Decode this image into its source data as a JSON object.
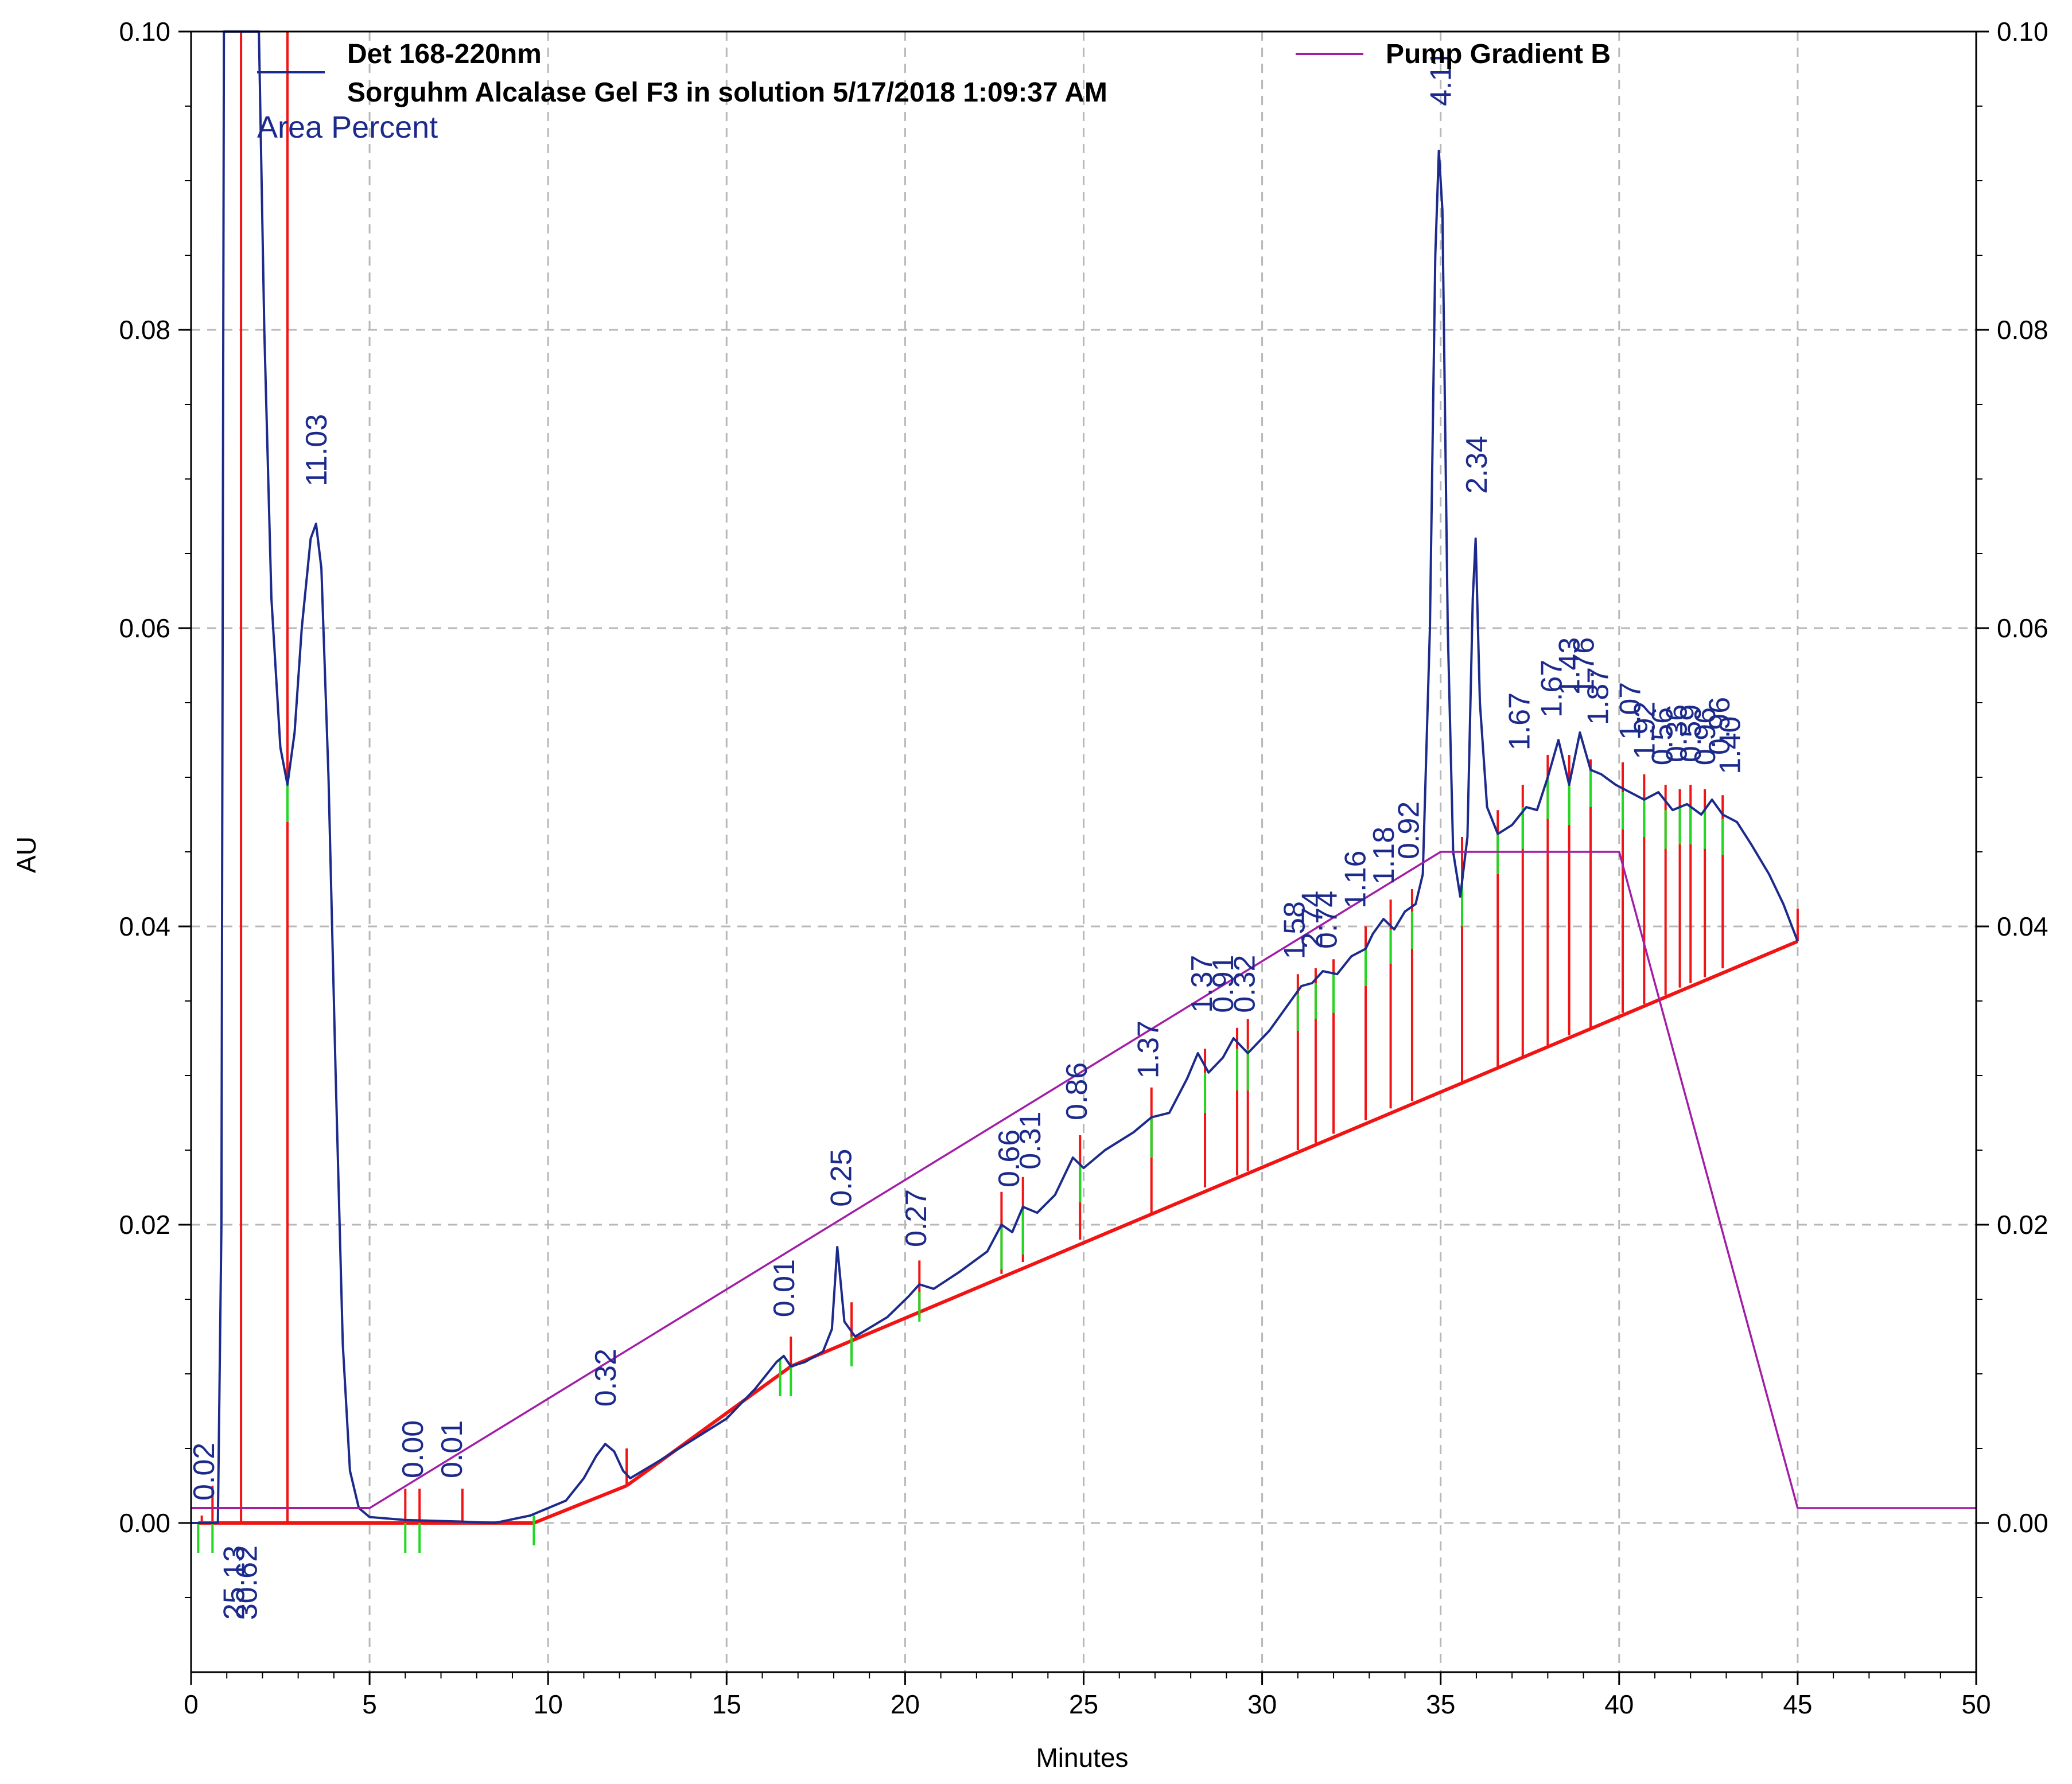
{
  "chart_data": {
    "type": "line",
    "legend": {
      "detector_label": "Det 168-220nm",
      "run_label": "Sorguhm Alcalase Gel F3 in solution 5/17/2018 1:09:37 AM",
      "mode_label": "Area Percent",
      "pump_label": "Pump Gradient B",
      "placement": "top"
    },
    "xlabel": "Minutes",
    "ylabel": "AU",
    "xlim": [
      0,
      50
    ],
    "ylim": [
      -0.01,
      0.1
    ],
    "grid": true,
    "x_ticks": [
      "0",
      "5",
      "10",
      "15",
      "20",
      "25",
      "30",
      "35",
      "40",
      "45",
      "50"
    ],
    "y_ticks": [
      "0.00",
      "0.02",
      "0.04",
      "0.06",
      "0.08",
      "0.10"
    ],
    "y2_ticks": [
      "0.00",
      "0.02",
      "0.04",
      "0.06",
      "0.08",
      "0.10"
    ],
    "colors": {
      "detector": "#1c2a8c",
      "pump": "#a21ea6",
      "integration": "#f01414",
      "peak_start": "#22d822",
      "grid": "#b8b8b8",
      "axis": "#000000"
    },
    "series": [
      {
        "name": "Det 168-220nm",
        "points": [
          [
            0.0,
            0.0
          ],
          [
            0.5,
            0.0
          ],
          [
            0.75,
            0.0
          ],
          [
            0.85,
            0.02
          ],
          [
            0.92,
            0.1
          ],
          [
            1.9,
            0.1
          ],
          [
            2.05,
            0.08
          ],
          [
            2.25,
            0.062
          ],
          [
            2.5,
            0.052
          ],
          [
            2.7,
            0.0495
          ],
          [
            2.9,
            0.053
          ],
          [
            3.1,
            0.06
          ],
          [
            3.35,
            0.066
          ],
          [
            3.5,
            0.067
          ],
          [
            3.65,
            0.064
          ],
          [
            3.85,
            0.05
          ],
          [
            4.05,
            0.03
          ],
          [
            4.25,
            0.012
          ],
          [
            4.45,
            0.0035
          ],
          [
            4.7,
            0.001
          ],
          [
            5.0,
            0.0004
          ],
          [
            6.0,
            0.0002
          ],
          [
            7.5,
            0.0001
          ],
          [
            8.5,
            0.0
          ],
          [
            9.5,
            0.0005
          ],
          [
            10.5,
            0.0015
          ],
          [
            11.0,
            0.003
          ],
          [
            11.35,
            0.0045
          ],
          [
            11.6,
            0.0053
          ],
          [
            11.85,
            0.0048
          ],
          [
            12.1,
            0.0035
          ],
          [
            12.3,
            0.003
          ],
          [
            13.0,
            0.004
          ],
          [
            14.0,
            0.0055
          ],
          [
            15.0,
            0.007
          ],
          [
            15.8,
            0.009
          ],
          [
            16.4,
            0.0108
          ],
          [
            16.6,
            0.0112
          ],
          [
            16.8,
            0.0105
          ],
          [
            17.2,
            0.0108
          ],
          [
            17.7,
            0.0115
          ],
          [
            17.95,
            0.013
          ],
          [
            18.1,
            0.0185
          ],
          [
            18.3,
            0.0135
          ],
          [
            18.6,
            0.0125
          ],
          [
            19.5,
            0.0138
          ],
          [
            20.1,
            0.0152
          ],
          [
            20.4,
            0.016
          ],
          [
            20.8,
            0.0157
          ],
          [
            21.5,
            0.0168
          ],
          [
            22.3,
            0.0182
          ],
          [
            22.7,
            0.02
          ],
          [
            23.0,
            0.0195
          ],
          [
            23.3,
            0.0212
          ],
          [
            23.7,
            0.0208
          ],
          [
            24.2,
            0.022
          ],
          [
            24.7,
            0.0245
          ],
          [
            25.0,
            0.0238
          ],
          [
            25.6,
            0.025
          ],
          [
            26.4,
            0.0262
          ],
          [
            26.9,
            0.0272
          ],
          [
            27.4,
            0.0275
          ],
          [
            27.9,
            0.0298
          ],
          [
            28.2,
            0.0315
          ],
          [
            28.5,
            0.0302
          ],
          [
            28.9,
            0.0312
          ],
          [
            29.2,
            0.0325
          ],
          [
            29.6,
            0.0315
          ],
          [
            30.2,
            0.033
          ],
          [
            30.8,
            0.035
          ],
          [
            31.1,
            0.036
          ],
          [
            31.4,
            0.0362
          ],
          [
            31.7,
            0.037
          ],
          [
            32.1,
            0.0368
          ],
          [
            32.5,
            0.038
          ],
          [
            32.9,
            0.0385
          ],
          [
            33.1,
            0.0395
          ],
          [
            33.4,
            0.0405
          ],
          [
            33.7,
            0.0398
          ],
          [
            34.0,
            0.041
          ],
          [
            34.3,
            0.0415
          ],
          [
            34.5,
            0.0435
          ],
          [
            34.7,
            0.06
          ],
          [
            34.85,
            0.085
          ],
          [
            34.95,
            0.092
          ],
          [
            35.05,
            0.088
          ],
          [
            35.2,
            0.06
          ],
          [
            35.35,
            0.045
          ],
          [
            35.55,
            0.042
          ],
          [
            35.75,
            0.046
          ],
          [
            35.9,
            0.062
          ],
          [
            35.98,
            0.066
          ],
          [
            36.1,
            0.055
          ],
          [
            36.3,
            0.048
          ],
          [
            36.6,
            0.0462
          ],
          [
            37.0,
            0.0468
          ],
          [
            37.4,
            0.048
          ],
          [
            37.7,
            0.0478
          ],
          [
            38.0,
            0.05
          ],
          [
            38.3,
            0.0525
          ],
          [
            38.6,
            0.0495
          ],
          [
            38.9,
            0.053
          ],
          [
            39.2,
            0.0505
          ],
          [
            39.5,
            0.0502
          ],
          [
            39.9,
            0.0495
          ],
          [
            40.3,
            0.049
          ],
          [
            40.7,
            0.0485
          ],
          [
            41.1,
            0.049
          ],
          [
            41.5,
            0.0478
          ],
          [
            41.9,
            0.0482
          ],
          [
            42.3,
            0.0475
          ],
          [
            42.6,
            0.0485
          ],
          [
            42.9,
            0.0475
          ],
          [
            43.3,
            0.047
          ],
          [
            43.7,
            0.0455
          ],
          [
            44.2,
            0.0435
          ],
          [
            44.6,
            0.0415
          ],
          [
            45.0,
            0.039
          ]
        ]
      },
      {
        "name": "Pump Gradient B",
        "points": [
          [
            0.0,
            0.001
          ],
          [
            5.0,
            0.001
          ],
          [
            35.0,
            0.045
          ],
          [
            40.0,
            0.045
          ],
          [
            45.0,
            0.001
          ],
          [
            50.0,
            0.001
          ]
        ]
      }
    ],
    "baseline": [
      [
        0.2,
        0.0
      ],
      [
        7.6,
        0.0
      ],
      [
        9.6,
        0.0
      ],
      [
        12.2,
        0.0025
      ],
      [
        16.8,
        0.0105
      ],
      [
        45.0,
        0.039
      ]
    ],
    "red_lines": [
      1.4,
      2.7
    ],
    "drops": [
      [
        0.3,
        0.0005,
        0.0
      ],
      [
        0.6,
        0.0025,
        0.0
      ],
      [
        2.7,
        0.0515,
        0.0
      ],
      [
        6.0,
        0.0023,
        0.0
      ],
      [
        6.4,
        0.0023,
        0.0
      ],
      [
        7.6,
        0.0023,
        0.0
      ],
      [
        12.2,
        0.005,
        0.0025
      ],
      [
        16.8,
        0.0125,
        0.0105
      ],
      [
        18.5,
        0.0148,
        0.0112
      ],
      [
        20.4,
        0.0176,
        0.0138
      ],
      [
        22.7,
        0.0222,
        0.0167
      ],
      [
        23.3,
        0.0232,
        0.0175
      ],
      [
        24.9,
        0.026,
        0.019
      ],
      [
        26.9,
        0.0292,
        0.0207
      ],
      [
        28.4,
        0.0318,
        0.0225
      ],
      [
        29.3,
        0.0332,
        0.0233
      ],
      [
        29.6,
        0.0338,
        0.0236
      ],
      [
        31.0,
        0.0368,
        0.025
      ],
      [
        31.5,
        0.0372,
        0.0255
      ],
      [
        32.0,
        0.0378,
        0.0261
      ],
      [
        32.9,
        0.04,
        0.027
      ],
      [
        33.6,
        0.0418,
        0.0278
      ],
      [
        34.2,
        0.0425,
        0.0283
      ],
      [
        35.6,
        0.046,
        0.0295
      ],
      [
        36.6,
        0.0478,
        0.0306
      ],
      [
        37.3,
        0.0495,
        0.0313
      ],
      [
        38.0,
        0.0515,
        0.032
      ],
      [
        38.6,
        0.0515,
        0.0327
      ],
      [
        39.2,
        0.0512,
        0.0332
      ],
      [
        40.1,
        0.051,
        0.0342
      ],
      [
        40.7,
        0.0502,
        0.0348
      ],
      [
        41.3,
        0.0495,
        0.0354
      ],
      [
        41.7,
        0.0492,
        0.0359
      ],
      [
        42.0,
        0.0495,
        0.0362
      ],
      [
        42.4,
        0.0492,
        0.0366
      ],
      [
        42.9,
        0.0488,
        0.0372
      ],
      [
        45.0,
        0.0412,
        0.039
      ]
    ],
    "green_ticks": [
      [
        0.2,
        0.0,
        -0.002
      ],
      [
        0.6,
        0.0,
        -0.002
      ],
      [
        2.7,
        0.0495,
        0.047
      ],
      [
        6.0,
        0.0,
        -0.002
      ],
      [
        6.4,
        0.0,
        -0.002
      ],
      [
        9.6,
        0.0005,
        -0.0015
      ],
      [
        16.5,
        0.011,
        0.0085
      ],
      [
        16.8,
        0.0105,
        0.0085
      ],
      [
        18.5,
        0.0125,
        0.0105
      ],
      [
        20.4,
        0.0155,
        0.0135
      ],
      [
        22.7,
        0.0198,
        0.017
      ],
      [
        23.3,
        0.021,
        0.018
      ],
      [
        24.9,
        0.024,
        0.0215
      ],
      [
        26.9,
        0.0272,
        0.0245
      ],
      [
        28.4,
        0.0302,
        0.0275
      ],
      [
        29.3,
        0.0318,
        0.029
      ],
      [
        29.6,
        0.0318,
        0.029
      ],
      [
        31.0,
        0.0355,
        0.033
      ],
      [
        31.5,
        0.0362,
        0.0338
      ],
      [
        32.0,
        0.0368,
        0.0342
      ],
      [
        32.9,
        0.0385,
        0.036
      ],
      [
        33.6,
        0.0398,
        0.0375
      ],
      [
        34.2,
        0.041,
        0.0385
      ],
      [
        35.6,
        0.0428,
        0.04
      ],
      [
        36.6,
        0.0462,
        0.0435
      ],
      [
        37.3,
        0.048,
        0.0452
      ],
      [
        38.0,
        0.05,
        0.0472
      ],
      [
        38.6,
        0.0495,
        0.0468
      ],
      [
        39.2,
        0.0505,
        0.048
      ],
      [
        40.1,
        0.049,
        0.0465
      ],
      [
        40.7,
        0.0485,
        0.046
      ],
      [
        41.3,
        0.0478,
        0.0452
      ],
      [
        41.7,
        0.048,
        0.0455
      ],
      [
        42.0,
        0.048,
        0.0455
      ],
      [
        42.4,
        0.0478,
        0.0452
      ],
      [
        42.9,
        0.0472,
        0.0448
      ]
    ],
    "annotations": [
      {
        "text": "0.02",
        "x": 0.35,
        "y": 0.0015,
        "dir": "up"
      },
      {
        "text": "25.13",
        "x": 1.2,
        "y": -0.0015,
        "dir": "down"
      },
      {
        "text": "30.62",
        "x": 1.55,
        "y": -0.0015,
        "dir": "down"
      },
      {
        "text": "11.03",
        "x": 3.5,
        "y": 0.0695,
        "dir": "up"
      },
      {
        "text": "0.00",
        "x": 6.2,
        "y": 0.003,
        "dir": "up"
      },
      {
        "text": "0.01",
        "x": 7.3,
        "y": 0.003,
        "dir": "up"
      },
      {
        "text": "0.32",
        "x": 11.6,
        "y": 0.0078,
        "dir": "up"
      },
      {
        "text": "0.01",
        "x": 16.6,
        "y": 0.0138,
        "dir": "up"
      },
      {
        "text": "0.25",
        "x": 18.2,
        "y": 0.0212,
        "dir": "up"
      },
      {
        "text": "0.27",
        "x": 20.3,
        "y": 0.0185,
        "dir": "up"
      },
      {
        "text": "0.66",
        "x": 22.9,
        "y": 0.0225,
        "dir": "up"
      },
      {
        "text": "0.31",
        "x": 23.5,
        "y": 0.0237,
        "dir": "up"
      },
      {
        "text": "0.86",
        "x": 24.8,
        "y": 0.027,
        "dir": "up"
      },
      {
        "text": "1.37",
        "x": 26.8,
        "y": 0.0298,
        "dir": "up"
      },
      {
        "text": "1.37",
        "x": 28.3,
        "y": 0.0342,
        "dir": "up"
      },
      {
        "text": "0.91",
        "x": 28.9,
        "y": 0.0342,
        "dir": "up"
      },
      {
        "text": "0.32",
        "x": 29.5,
        "y": 0.0342,
        "dir": "up"
      },
      {
        "text": "1.58",
        "x": 30.9,
        "y": 0.0378,
        "dir": "up"
      },
      {
        "text": "2.74",
        "x": 31.4,
        "y": 0.0385,
        "dir": "up"
      },
      {
        "text": "0.74",
        "x": 31.8,
        "y": 0.0385,
        "dir": "up"
      },
      {
        "text": "1.16",
        "x": 32.6,
        "y": 0.0412,
        "dir": "up"
      },
      {
        "text": "1.18",
        "x": 33.4,
        "y": 0.0428,
        "dir": "up"
      },
      {
        "text": "0.92",
        "x": 34.1,
        "y": 0.0445,
        "dir": "up"
      },
      {
        "text": "4.11",
        "x": 35.0,
        "y": 0.095,
        "dir": "up"
      },
      {
        "text": "2.34",
        "x": 36.0,
        "y": 0.069,
        "dir": "up"
      },
      {
        "text": "1.67",
        "x": 37.2,
        "y": 0.0518,
        "dir": "up"
      },
      {
        "text": "1.67",
        "x": 38.1,
        "y": 0.054,
        "dir": "up"
      },
      {
        "text": "1.43",
        "x": 38.6,
        "y": 0.0555,
        "dir": "up"
      },
      {
        "text": "1.76",
        "x": 39.0,
        "y": 0.0555,
        "dir": "up"
      },
      {
        "text": "1.87",
        "x": 39.4,
        "y": 0.0535,
        "dir": "up"
      },
      {
        "text": "1.07",
        "x": 40.3,
        "y": 0.0525,
        "dir": "up"
      },
      {
        "text": "1.92",
        "x": 40.7,
        "y": 0.0512,
        "dir": "up"
      },
      {
        "text": "0.56",
        "x": 41.2,
        "y": 0.0508,
        "dir": "up"
      },
      {
        "text": "0.36",
        "x": 41.6,
        "y": 0.051,
        "dir": "up"
      },
      {
        "text": "0.59",
        "x": 42.0,
        "y": 0.051,
        "dir": "up"
      },
      {
        "text": "0.96",
        "x": 42.4,
        "y": 0.0508,
        "dir": "up"
      },
      {
        "text": "0.96",
        "x": 42.8,
        "y": 0.0515,
        "dir": "up"
      },
      {
        "text": "1.40",
        "x": 43.1,
        "y": 0.0502,
        "dir": "up"
      }
    ]
  }
}
